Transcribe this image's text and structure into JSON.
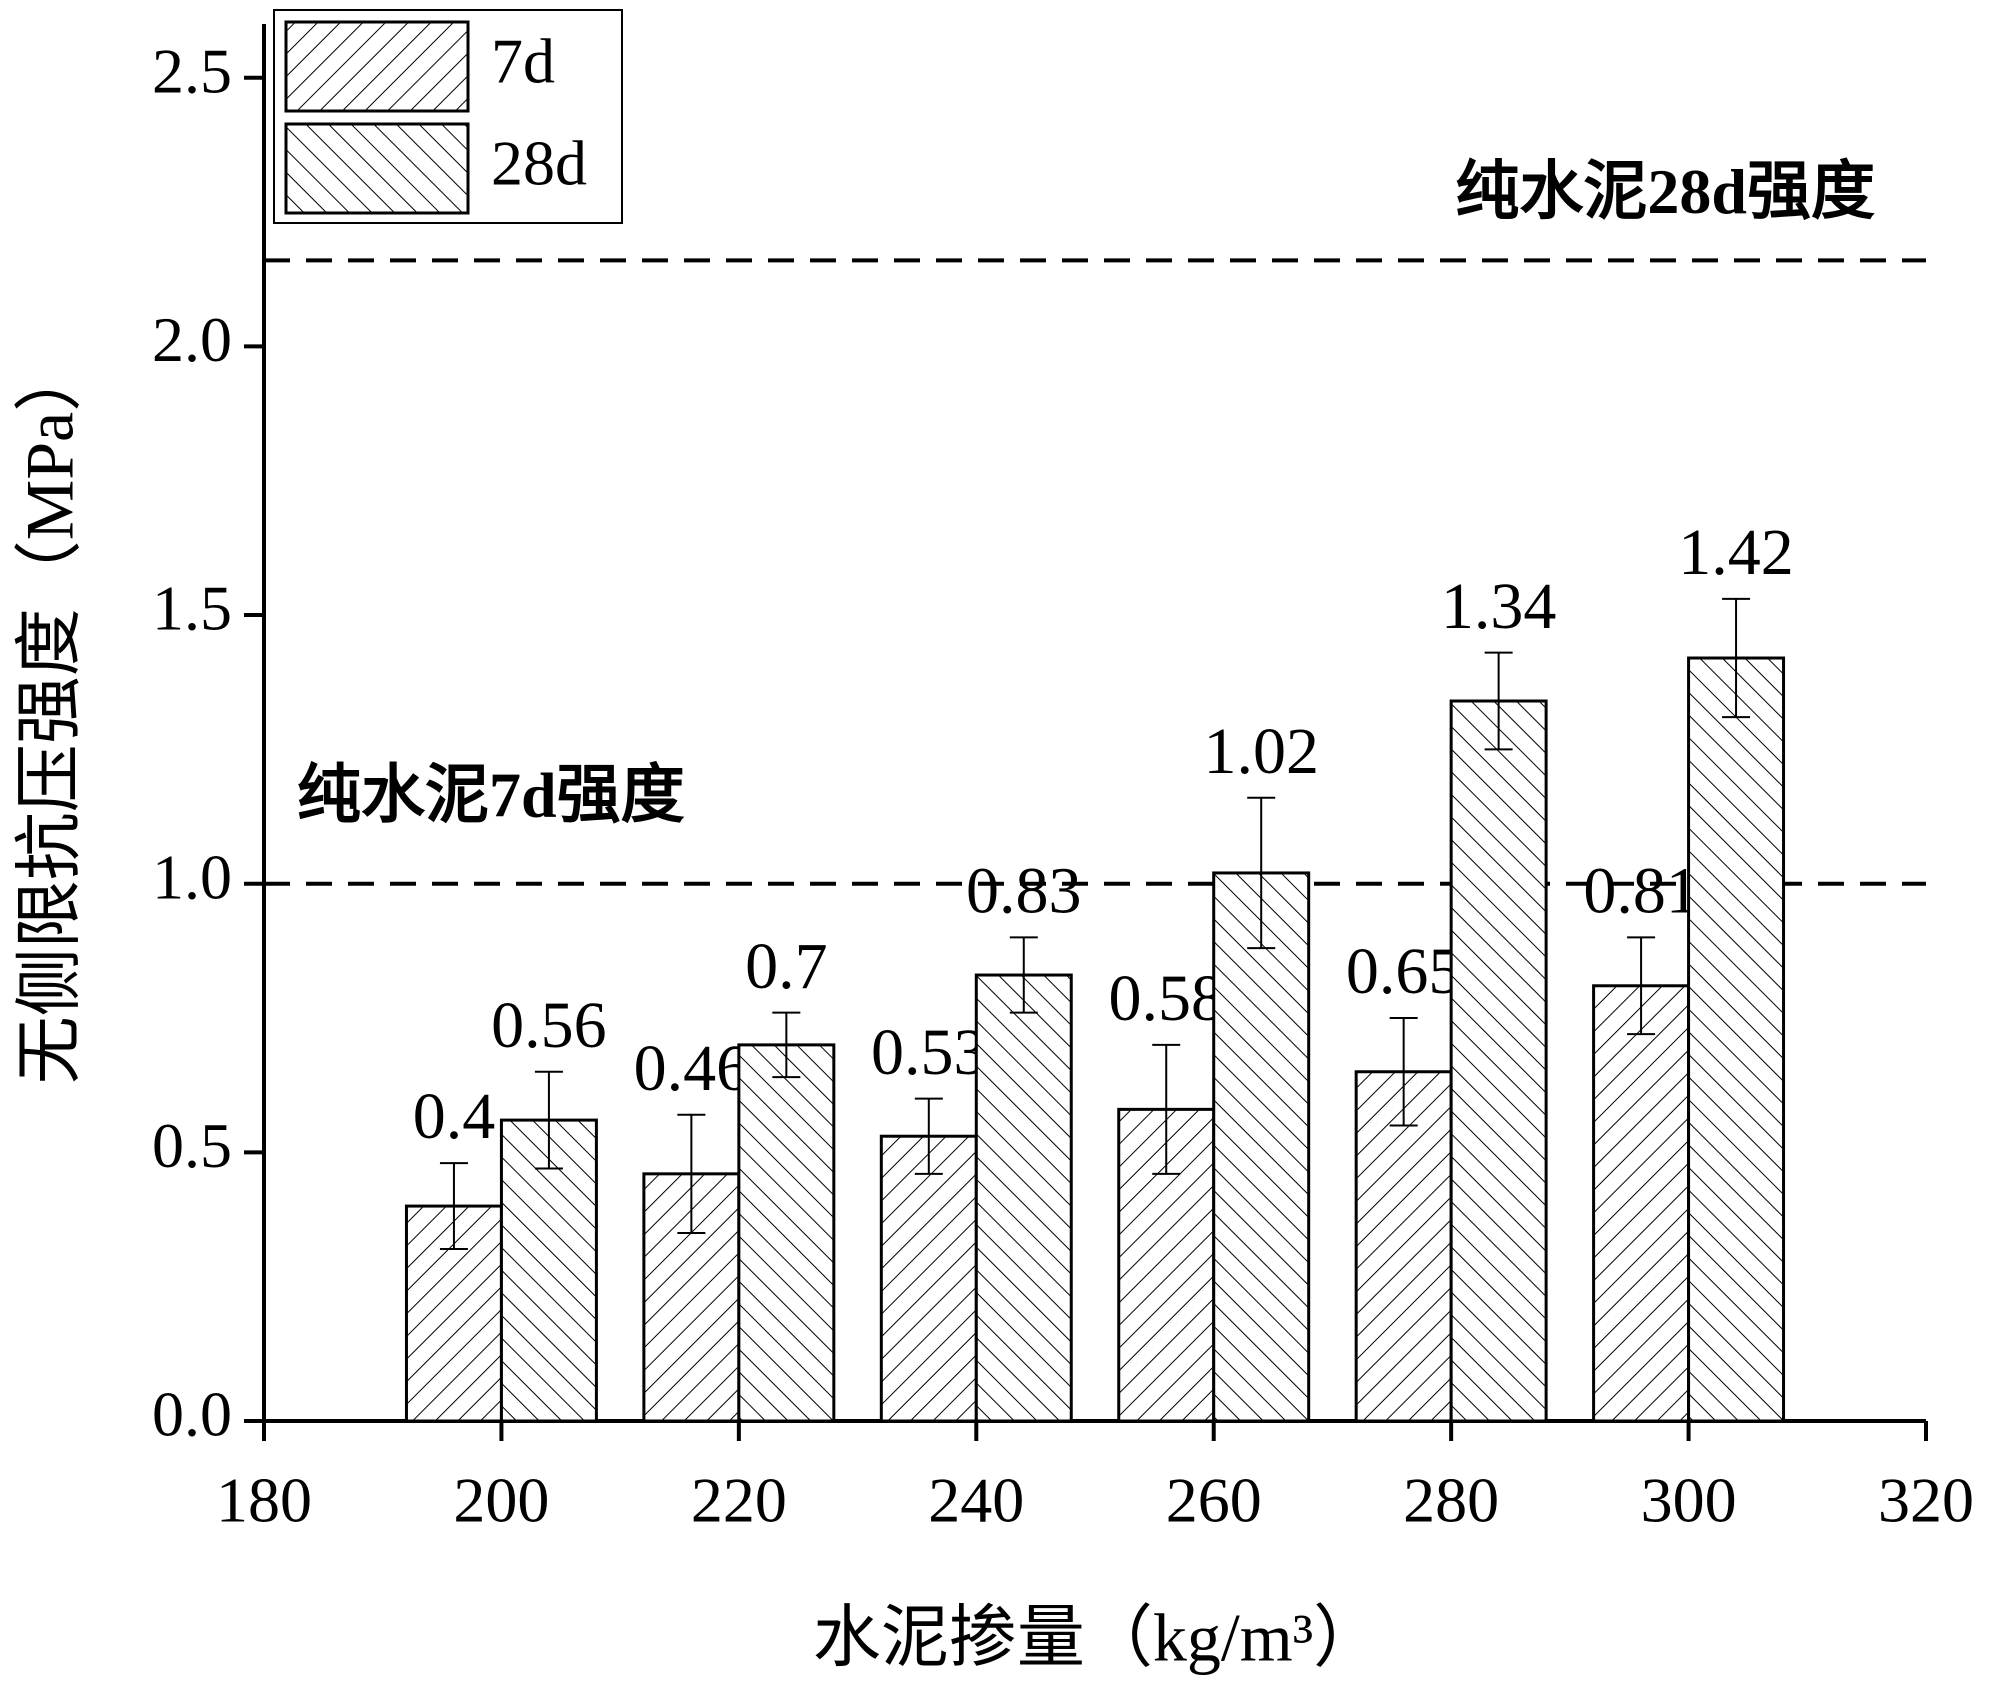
{
  "chart_data": {
    "type": "bar",
    "x_label": "水泥掺量（kg/m³）",
    "y_label": "无侧限抗压强度（MPa）",
    "x": [
      200,
      220,
      240,
      260,
      280,
      300
    ],
    "series": [
      {
        "name": "7d",
        "color": "#000000",
        "hatch": "/",
        "values": [
          0.4,
          0.46,
          0.53,
          0.58,
          0.65,
          0.81
        ],
        "errors": [
          0.08,
          0.11,
          0.07,
          0.12,
          0.1,
          0.09
        ]
      },
      {
        "name": "28d",
        "color": "#000000",
        "hatch": "\\",
        "values": [
          0.56,
          0.7,
          0.83,
          1.02,
          1.34,
          1.42
        ],
        "errors": [
          0.09,
          0.06,
          0.07,
          0.14,
          0.09,
          0.11
        ]
      }
    ],
    "reference_lines": [
      {
        "value": 2.16,
        "label": "纯水泥28d强度"
      },
      {
        "value": 1.0,
        "label": "纯水泥7d强度"
      }
    ],
    "xlim": [
      180,
      320
    ],
    "xticks": [
      180,
      200,
      220,
      240,
      260,
      280,
      300,
      320
    ],
    "ylim": [
      0,
      2.6
    ],
    "yticks": [
      {
        "value": 0,
        "label": "0.0"
      },
      0.5,
      {
        "value": 1,
        "label": "1.0"
      },
      1.5,
      {
        "value": 2,
        "label": "2.0"
      },
      2.5
    ],
    "legend": "top-left"
  }
}
